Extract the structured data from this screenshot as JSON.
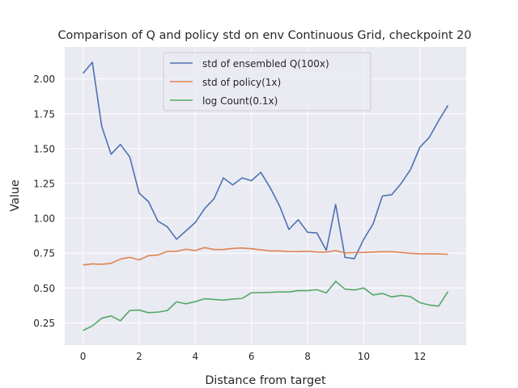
{
  "chart_data": {
    "type": "line",
    "title": "Comparison of Q and policy std on env Continuous Grid, checkpoint 20",
    "xlabel": "Distance from target",
    "ylabel": "Value",
    "xlim": [
      -0.65,
      13.65
    ],
    "ylim": [
      0.09,
      2.23
    ],
    "xticks": [
      0,
      2,
      4,
      6,
      8,
      10,
      12
    ],
    "xtick_labels": [
      "0",
      "2",
      "4",
      "6",
      "8",
      "10",
      "12"
    ],
    "yticks": [
      0.25,
      0.5,
      0.75,
      1.0,
      1.25,
      1.5,
      1.75,
      2.0
    ],
    "ytick_labels": [
      "0.25",
      "0.50",
      "0.75",
      "1.00",
      "1.25",
      "1.50",
      "1.75",
      "2.00"
    ],
    "grid": true,
    "legend_position": "top-center",
    "x": [
      0,
      0.333,
      0.667,
      1.0,
      1.333,
      1.667,
      2.0,
      2.333,
      2.667,
      3.0,
      3.333,
      3.667,
      4.0,
      4.333,
      4.667,
      5.0,
      5.333,
      5.667,
      6.0,
      6.333,
      6.667,
      7.0,
      7.333,
      7.667,
      8.0,
      8.333,
      8.667,
      9.0,
      9.333,
      9.667,
      10.0,
      10.333,
      10.667,
      11.0,
      11.333,
      11.667,
      12.0,
      12.333,
      12.667,
      13.0
    ],
    "series": [
      {
        "name": "std of ensembled Q(100x)",
        "color": "#4c72b0",
        "values": [
          2.04,
          2.12,
          1.66,
          1.46,
          1.53,
          1.44,
          1.18,
          1.12,
          0.98,
          0.94,
          0.85,
          0.91,
          0.97,
          1.07,
          1.14,
          1.29,
          1.24,
          1.29,
          1.27,
          1.33,
          1.22,
          1.09,
          0.92,
          0.99,
          0.9,
          0.895,
          0.77,
          1.1,
          0.72,
          0.71,
          0.85,
          0.96,
          1.16,
          1.17,
          1.25,
          1.35,
          1.51,
          1.58,
          1.7,
          1.81
        ]
      },
      {
        "name": "std of policy(1x)",
        "color": "#dd8452",
        "values": [
          0.665,
          0.673,
          0.67,
          0.677,
          0.708,
          0.72,
          0.702,
          0.732,
          0.737,
          0.762,
          0.764,
          0.778,
          0.769,
          0.79,
          0.776,
          0.777,
          0.784,
          0.787,
          0.782,
          0.774,
          0.766,
          0.766,
          0.762,
          0.761,
          0.764,
          0.758,
          0.757,
          0.768,
          0.752,
          0.754,
          0.755,
          0.758,
          0.76,
          0.76,
          0.755,
          0.749,
          0.746,
          0.745,
          0.745,
          0.742
        ]
      },
      {
        "name": "log Count(0.1x)",
        "color": "#55a868",
        "values": [
          0.195,
          0.228,
          0.283,
          0.3,
          0.265,
          0.339,
          0.342,
          0.323,
          0.327,
          0.338,
          0.401,
          0.387,
          0.402,
          0.423,
          0.418,
          0.413,
          0.421,
          0.425,
          0.466,
          0.467,
          0.469,
          0.472,
          0.471,
          0.482,
          0.481,
          0.488,
          0.465,
          0.548,
          0.492,
          0.486,
          0.5,
          0.45,
          0.461,
          0.436,
          0.447,
          0.438,
          0.395,
          0.378,
          0.37,
          0.474
        ]
      }
    ]
  }
}
